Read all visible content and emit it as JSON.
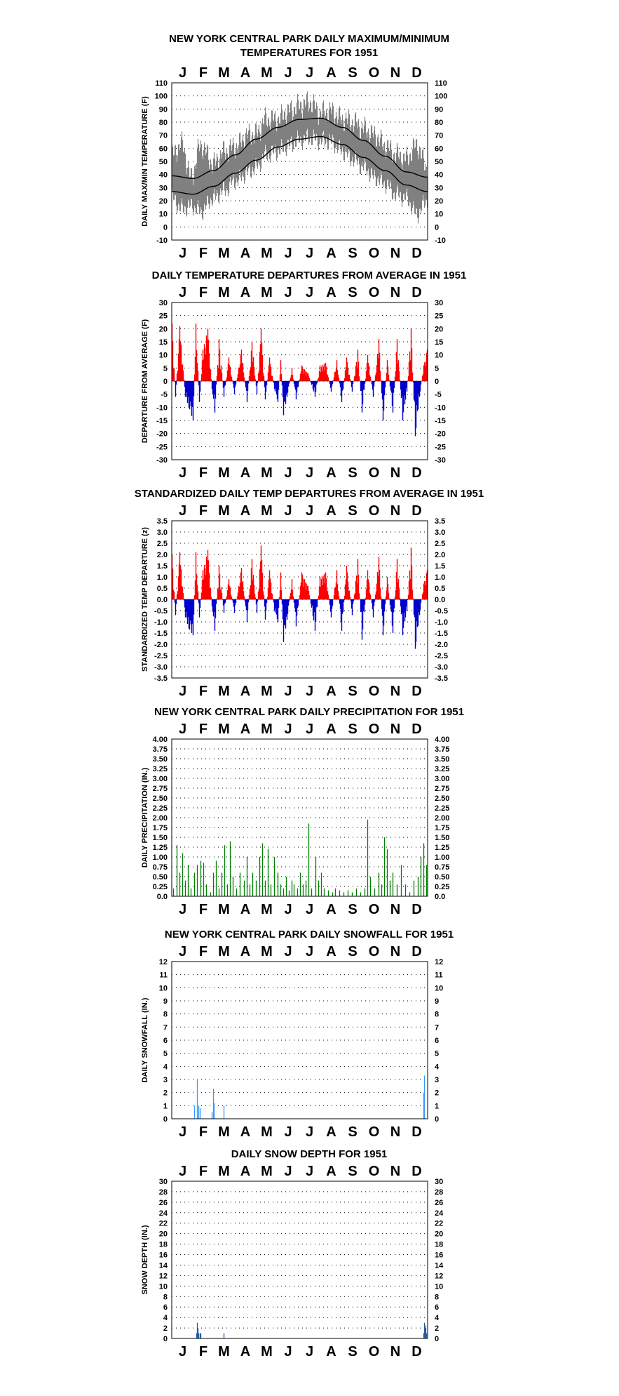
{
  "months": [
    "J",
    "F",
    "M",
    "A",
    "M",
    "J",
    "J",
    "A",
    "S",
    "O",
    "N",
    "D"
  ],
  "chart_data": [
    {
      "id": "maxmin",
      "type": "line",
      "title": "NEW YORK CENTRAL PARK DAILY MAXIMUM/MINIMUM",
      "title2": "TEMPERATURES FOR 1951",
      "xlabel": "",
      "ylabel": "DAILY MAX/MIN TEMPERATURE (F)",
      "ylim": [
        -10,
        110
      ],
      "yticks": [
        -10,
        0,
        10,
        20,
        30,
        40,
        50,
        60,
        70,
        80,
        90,
        100,
        110
      ],
      "ytick_labels": [
        "-10",
        "0",
        "10",
        "20",
        "30",
        "40",
        "50",
        "60",
        "70",
        "80",
        "90",
        "100",
        "110"
      ],
      "grid": true,
      "colors": {
        "observed": "#808080",
        "normals": "#000000"
      },
      "normal_max_by_day": [
        [
          1,
          39
        ],
        [
          31,
          37
        ],
        [
          60,
          43
        ],
        [
          91,
          55
        ],
        [
          121,
          67
        ],
        [
          152,
          76
        ],
        [
          182,
          82
        ],
        [
          213,
          83
        ],
        [
          244,
          76
        ],
        [
          274,
          66
        ],
        [
          305,
          54
        ],
        [
          335,
          42
        ],
        [
          365,
          38
        ]
      ],
      "normal_min_by_day": [
        [
          1,
          27
        ],
        [
          31,
          25
        ],
        [
          60,
          31
        ],
        [
          91,
          41
        ],
        [
          121,
          51
        ],
        [
          152,
          61
        ],
        [
          182,
          67
        ],
        [
          213,
          69
        ],
        [
          244,
          63
        ],
        [
          274,
          53
        ],
        [
          305,
          43
        ],
        [
          335,
          32
        ],
        [
          365,
          27
        ]
      ],
      "observed_max_by_day": [
        [
          1,
          55
        ],
        [
          15,
          63
        ],
        [
          28,
          38
        ],
        [
          42,
          62
        ],
        [
          60,
          48
        ],
        [
          75,
          57
        ],
        [
          91,
          61
        ],
        [
          110,
          70
        ],
        [
          121,
          71
        ],
        [
          135,
          82
        ],
        [
          152,
          82
        ],
        [
          166,
          88
        ],
        [
          182,
          92
        ],
        [
          197,
          95
        ],
        [
          213,
          87
        ],
        [
          228,
          88
        ],
        [
          244,
          82
        ],
        [
          258,
          80
        ],
        [
          274,
          75
        ],
        [
          290,
          70
        ],
        [
          305,
          62
        ],
        [
          320,
          55
        ],
        [
          335,
          52
        ],
        [
          350,
          62
        ],
        [
          365,
          45
        ]
      ],
      "observed_min_by_day": [
        [
          1,
          22
        ],
        [
          15,
          14
        ],
        [
          28,
          16
        ],
        [
          42,
          12
        ],
        [
          60,
          22
        ],
        [
          75,
          28
        ],
        [
          91,
          35
        ],
        [
          110,
          42
        ],
        [
          121,
          46
        ],
        [
          135,
          55
        ],
        [
          152,
          58
        ],
        [
          166,
          62
        ],
        [
          182,
          66
        ],
        [
          197,
          68
        ],
        [
          213,
          66
        ],
        [
          228,
          65
        ],
        [
          244,
          58
        ],
        [
          258,
          52
        ],
        [
          274,
          46
        ],
        [
          290,
          38
        ],
        [
          305,
          33
        ],
        [
          320,
          25
        ],
        [
          335,
          22
        ],
        [
          350,
          10
        ],
        [
          365,
          20
        ]
      ]
    },
    {
      "id": "departures",
      "type": "bar",
      "title": "DAILY TEMPERATURE DEPARTURES FROM AVERAGE IN 1951",
      "xlabel": "",
      "ylabel": "DEPARTURE FROM AVERAGE (F)",
      "ylim": [
        -30,
        30
      ],
      "yticks": [
        -30,
        -25,
        -20,
        -15,
        -10,
        -5,
        0,
        5,
        10,
        15,
        20,
        25,
        30
      ],
      "ytick_labels": [
        "-30",
        "-25",
        "-20",
        "-15",
        "-10",
        "-5",
        "0",
        "5",
        "10",
        "15",
        "20",
        "25",
        "30"
      ],
      "grid": true,
      "colors": {
        "positive": "#ff0000",
        "negative": "#0000cc"
      },
      "peaks_by_day": [
        [
          1,
          22
        ],
        [
          6,
          -6
        ],
        [
          12,
          21
        ],
        [
          20,
          -6
        ],
        [
          25,
          -10
        ],
        [
          31,
          -15
        ],
        [
          35,
          22
        ],
        [
          40,
          -8
        ],
        [
          45,
          12
        ],
        [
          52,
          20
        ],
        [
          58,
          -3
        ],
        [
          62,
          -12
        ],
        [
          68,
          16
        ],
        [
          75,
          -6
        ],
        [
          82,
          9
        ],
        [
          90,
          -5
        ],
        [
          100,
          12
        ],
        [
          108,
          -8
        ],
        [
          115,
          15
        ],
        [
          122,
          -5
        ],
        [
          128,
          20
        ],
        [
          134,
          -7
        ],
        [
          140,
          9
        ],
        [
          147,
          -3
        ],
        [
          152,
          -8
        ],
        [
          156,
          8
        ],
        [
          160,
          -13
        ],
        [
          165,
          -6
        ],
        [
          172,
          5
        ],
        [
          178,
          -7
        ],
        [
          186,
          6
        ],
        [
          195,
          3
        ],
        [
          205,
          -6
        ],
        [
          212,
          6
        ],
        [
          220,
          7
        ],
        [
          228,
          -4
        ],
        [
          236,
          8
        ],
        [
          243,
          -8
        ],
        [
          250,
          9
        ],
        [
          258,
          -4
        ],
        [
          266,
          12
        ],
        [
          272,
          -12
        ],
        [
          280,
          10
        ],
        [
          288,
          -6
        ],
        [
          296,
          16
        ],
        [
          302,
          -15
        ],
        [
          308,
          8
        ],
        [
          316,
          -12
        ],
        [
          322,
          16
        ],
        [
          330,
          -15
        ],
        [
          336,
          -4
        ],
        [
          342,
          20
        ],
        [
          348,
          -21
        ],
        [
          354,
          -6
        ],
        [
          360,
          6
        ],
        [
          365,
          12
        ]
      ]
    },
    {
      "id": "standardized",
      "type": "bar",
      "title": "STANDARDIZED DAILY TEMP DEPARTURES FROM AVERAGE IN 1951",
      "xlabel": "",
      "ylabel": "STANDARDIZED TEMP DEPARTURE (z)",
      "ylim": [
        -3.5,
        3.5
      ],
      "yticks": [
        -3.5,
        -3.0,
        -2.5,
        -2.0,
        -1.5,
        -1.0,
        -0.5,
        0,
        0.5,
        1.0,
        1.5,
        2.0,
        2.5,
        3.0,
        3.5
      ],
      "ytick_labels": [
        "-3.5",
        "-3.0",
        "-2.5",
        "-2.0",
        "-1.5",
        "-1.0",
        "-0.5",
        "0.0",
        "0.5",
        "1.0",
        "1.5",
        "2.0",
        "2.5",
        "3.0",
        "3.5"
      ],
      "ytick_labels_right": [
        "-3.5",
        "-3.0",
        "-2.5",
        "-2.0",
        "-1.5",
        "-1.0",
        "-0.5",
        "0.0",
        "0.5",
        "1.0",
        "1.5",
        "2.0",
        "2.5",
        "3.0",
        "3.5"
      ],
      "grid": true,
      "colors": {
        "positive": "#ff0000",
        "negative": "#0000cc"
      },
      "peaks_by_day": [
        [
          1,
          2.0
        ],
        [
          6,
          -0.7
        ],
        [
          12,
          2.1
        ],
        [
          20,
          -0.8
        ],
        [
          25,
          -1.3
        ],
        [
          31,
          -1.6
        ],
        [
          35,
          2.1
        ],
        [
          40,
          -0.8
        ],
        [
          45,
          1.3
        ],
        [
          52,
          2.2
        ],
        [
          58,
          -0.3
        ],
        [
          62,
          -1.4
        ],
        [
          68,
          1.5
        ],
        [
          75,
          -0.6
        ],
        [
          82,
          0.9
        ],
        [
          90,
          -0.6
        ],
        [
          100,
          1.4
        ],
        [
          108,
          -1.0
        ],
        [
          115,
          1.8
        ],
        [
          122,
          -0.6
        ],
        [
          128,
          2.4
        ],
        [
          134,
          -0.9
        ],
        [
          140,
          1.3
        ],
        [
          147,
          -0.5
        ],
        [
          152,
          -1.0
        ],
        [
          156,
          1.2
        ],
        [
          160,
          -1.9
        ],
        [
          165,
          -0.9
        ],
        [
          172,
          0.9
        ],
        [
          178,
          -1.2
        ],
        [
          186,
          1.2
        ],
        [
          195,
          0.6
        ],
        [
          205,
          -1.4
        ],
        [
          212,
          1.0
        ],
        [
          220,
          1.2
        ],
        [
          228,
          -0.8
        ],
        [
          236,
          1.3
        ],
        [
          243,
          -1.4
        ],
        [
          250,
          1.5
        ],
        [
          258,
          -0.7
        ],
        [
          266,
          1.8
        ],
        [
          272,
          -1.8
        ],
        [
          280,
          1.3
        ],
        [
          288,
          -0.8
        ],
        [
          296,
          1.9
        ],
        [
          302,
          -1.6
        ],
        [
          308,
          1.0
        ],
        [
          316,
          -1.5
        ],
        [
          322,
          1.8
        ],
        [
          330,
          -1.6
        ],
        [
          336,
          -0.5
        ],
        [
          342,
          2.3
        ],
        [
          348,
          -2.2
        ],
        [
          354,
          -0.7
        ],
        [
          360,
          0.7
        ],
        [
          365,
          1.3
        ]
      ]
    },
    {
      "id": "precip",
      "type": "bar",
      "title": "NEW YORK CENTRAL PARK DAILY PRECIPITATION FOR 1951",
      "xlabel": "",
      "ylabel": "DAILY PRECIPITATION (IN.)",
      "ylim": [
        0,
        4
      ],
      "yticks": [
        0,
        0.25,
        0.5,
        0.75,
        1,
        1.25,
        1.5,
        1.75,
        2,
        2.25,
        2.5,
        2.75,
        3,
        3.25,
        3.5,
        3.75,
        4
      ],
      "ytick_labels": [
        "0.0",
        "0.25",
        "0.50",
        "0.75",
        "1.00",
        "1.25",
        "1.50",
        "1.75",
        "2.00",
        "2.25",
        "2.50",
        "2.75",
        "3.00",
        "3.25",
        "3.50",
        "3.75",
        "4.00"
      ],
      "grid": true,
      "colors": {
        "bars": "#008000"
      },
      "bars_by_day": [
        [
          3,
          0.2
        ],
        [
          8,
          1.3
        ],
        [
          12,
          0.6
        ],
        [
          16,
          1.1
        ],
        [
          20,
          0.4
        ],
        [
          24,
          0.8
        ],
        [
          28,
          0.2
        ],
        [
          33,
          0.6
        ],
        [
          37,
          0.8
        ],
        [
          42,
          0.9
        ],
        [
          46,
          0.85
        ],
        [
          50,
          0.3
        ],
        [
          56,
          0.1
        ],
        [
          60,
          0.6
        ],
        [
          64,
          0.9
        ],
        [
          68,
          0.2
        ],
        [
          72,
          0.6
        ],
        [
          76,
          1.3
        ],
        [
          80,
          0.3
        ],
        [
          84,
          1.4
        ],
        [
          88,
          0.5
        ],
        [
          93,
          0.2
        ],
        [
          98,
          0.6
        ],
        [
          104,
          0.4
        ],
        [
          108,
          1.0
        ],
        [
          112,
          0.3
        ],
        [
          116,
          0.6
        ],
        [
          121,
          0.4
        ],
        [
          126,
          1.0
        ],
        [
          130,
          1.35
        ],
        [
          134,
          0.4
        ],
        [
          138,
          1.2
        ],
        [
          142,
          0.3
        ],
        [
          147,
          1.0
        ],
        [
          152,
          0.6
        ],
        [
          156,
          0.3
        ],
        [
          160,
          0.2
        ],
        [
          164,
          0.5
        ],
        [
          168,
          0.15
        ],
        [
          172,
          0.4
        ],
        [
          175,
          0.3
        ],
        [
          180,
          0.2
        ],
        [
          184,
          0.6
        ],
        [
          188,
          0.3
        ],
        [
          192,
          0.4
        ],
        [
          196,
          1.85
        ],
        [
          200,
          0.2
        ],
        [
          206,
          1.0
        ],
        [
          210,
          0.4
        ],
        [
          214,
          0.6
        ],
        [
          218,
          0.2
        ],
        [
          224,
          0.15
        ],
        [
          230,
          0.1
        ],
        [
          234,
          0.2
        ],
        [
          240,
          0.15
        ],
        [
          246,
          0.1
        ],
        [
          252,
          0.15
        ],
        [
          258,
          0.1
        ],
        [
          264,
          0.2
        ],
        [
          270,
          0.1
        ],
        [
          276,
          0.2
        ],
        [
          280,
          1.95
        ],
        [
          284,
          0.5
        ],
        [
          290,
          0.2
        ],
        [
          296,
          0.6
        ],
        [
          300,
          0.3
        ],
        [
          304,
          1.5
        ],
        [
          308,
          1.2
        ],
        [
          312,
          0.4
        ],
        [
          316,
          0.6
        ],
        [
          322,
          0.3
        ],
        [
          328,
          0.8
        ],
        [
          334,
          0.3
        ],
        [
          340,
          0.1
        ],
        [
          346,
          0.4
        ],
        [
          352,
          0.5
        ],
        [
          356,
          1.0
        ],
        [
          360,
          1.35
        ],
        [
          364,
          0.8
        ]
      ]
    },
    {
      "id": "snowfall",
      "type": "bar",
      "title": "NEW YORK CENTRAL PARK DAILY SNOWFALL FOR 1951",
      "xlabel": "",
      "ylabel": "DAILY SNOWFALL (IN.)",
      "ylim": [
        0,
        12
      ],
      "yticks": [
        0,
        1,
        2,
        3,
        4,
        5,
        6,
        7,
        8,
        9,
        10,
        11,
        12
      ],
      "ytick_labels": [
        "0",
        "1",
        "2",
        "3",
        "4",
        "5",
        "6",
        "7",
        "8",
        "9",
        "10",
        "11",
        "12"
      ],
      "grid": true,
      "colors": {
        "bars": "#3399ff"
      },
      "bars_by_day": [
        [
          33,
          1.0
        ],
        [
          37,
          3.0
        ],
        [
          39,
          1.0
        ],
        [
          41,
          0.8
        ],
        [
          58,
          0.5
        ],
        [
          60,
          2.3
        ],
        [
          61,
          1.2
        ],
        [
          75,
          1.0
        ],
        [
          360,
          2.0
        ],
        [
          361,
          3.3
        ]
      ]
    },
    {
      "id": "snowdepth",
      "type": "bar",
      "title": "DAILY SNOW DEPTH FOR 1951",
      "xlabel": "",
      "ylabel": "SNOW DEPTH (IN.)",
      "ylim": [
        0,
        30
      ],
      "yticks": [
        0,
        2,
        4,
        6,
        8,
        10,
        12,
        14,
        16,
        18,
        20,
        22,
        24,
        26,
        28,
        30
      ],
      "ytick_labels": [
        "0",
        "2",
        "4",
        "6",
        "8",
        "10",
        "12",
        "14",
        "16",
        "18",
        "20",
        "22",
        "24",
        "26",
        "28",
        "30"
      ],
      "grid": true,
      "colors": {
        "bars": "#1f5fa5"
      },
      "bars_by_day": [
        [
          36,
          1.0
        ],
        [
          37,
          3.0
        ],
        [
          38,
          2.0
        ],
        [
          39,
          1.0
        ],
        [
          41,
          1.0
        ],
        [
          42,
          1.0
        ],
        [
          75,
          1.0
        ],
        [
          360,
          1.0
        ],
        [
          361,
          3.0
        ],
        [
          362,
          2.5
        ],
        [
          363,
          2.0
        ],
        [
          364,
          1.0
        ]
      ]
    }
  ]
}
